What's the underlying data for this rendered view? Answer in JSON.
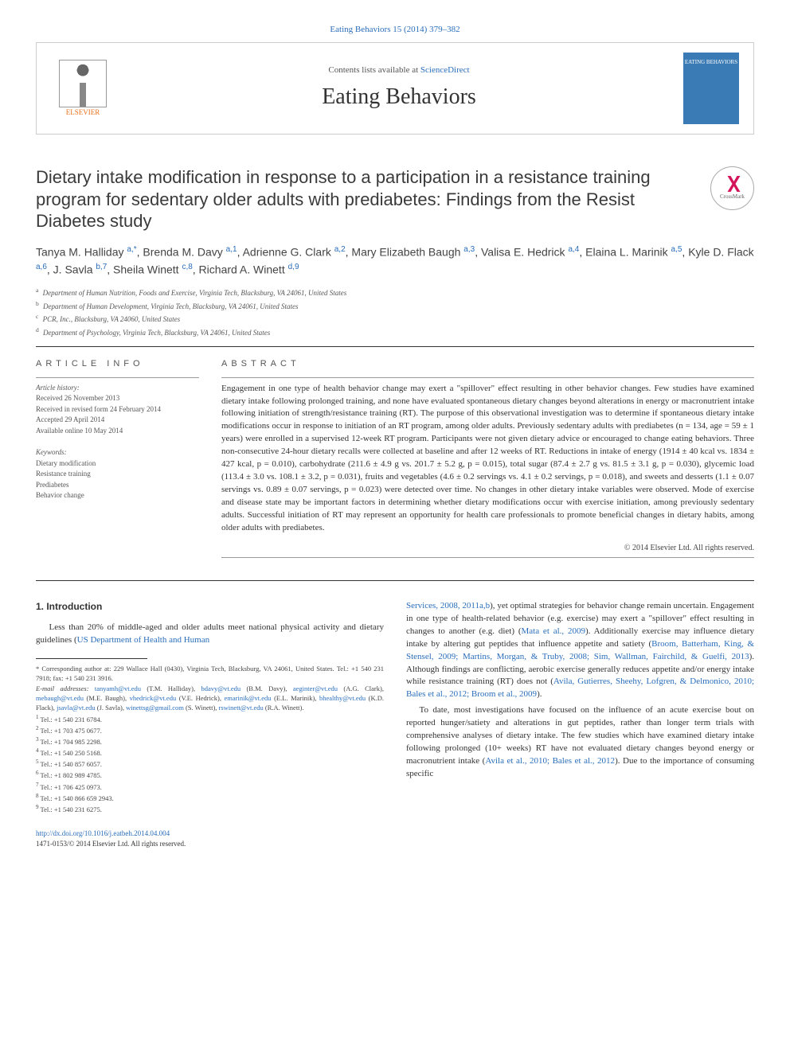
{
  "top_link": "Eating Behaviors 15 (2014) 379–382",
  "header": {
    "contents_prefix": "Contents lists available at ",
    "contents_link": "ScienceDirect",
    "journal": "Eating Behaviors",
    "elsevier": "ELSEVIER",
    "cover_text": "EATING BEHAVIORS"
  },
  "title": "Dietary intake modification in response to a participation in a resistance training program for sedentary older adults with prediabetes: Findings from the Resist Diabetes study",
  "crossmark": "CrossMark",
  "authors_html": "Tanya M. Halliday <sup>a,*</sup>, Brenda M. Davy <sup>a,1</sup>, Adrienne G. Clark <sup>a,2</sup>, Mary Elizabeth Baugh <sup>a,3</sup>, Valisa E. Hedrick <sup>a,4</sup>, Elaina L. Marinik <sup>a,5</sup>, Kyle D. Flack <sup>a,6</sup>, J. Savla <sup>b,7</sup>, Sheila Winett <sup>c,8</sup>, Richard A. Winett <sup>d,9</sup>",
  "affiliations": [
    {
      "sup": "a",
      "text": "Department of Human Nutrition, Foods and Exercise, Virginia Tech, Blacksburg, VA 24061, United States"
    },
    {
      "sup": "b",
      "text": "Department of Human Development, Virginia Tech, Blacksburg, VA 24061, United States"
    },
    {
      "sup": "c",
      "text": "PCR, Inc., Blacksburg, VA 24060, United States"
    },
    {
      "sup": "d",
      "text": "Department of Psychology, Virginia Tech, Blacksburg, VA 24061, United States"
    }
  ],
  "article_info": {
    "head": "ARTICLE INFO",
    "history_label": "Article history:",
    "history": [
      "Received 26 November 2013",
      "Received in revised form 24 February 2014",
      "Accepted 29 April 2014",
      "Available online 10 May 2014"
    ],
    "keywords_label": "Keywords:",
    "keywords": [
      "Dietary modification",
      "Resistance training",
      "Prediabetes",
      "Behavior change"
    ]
  },
  "abstract": {
    "head": "ABSTRACT",
    "text": "Engagement in one type of health behavior change may exert a \"spillover\" effect resulting in other behavior changes. Few studies have examined dietary intake following prolonged training, and none have evaluated spontaneous dietary changes beyond alterations in energy or macronutrient intake following initiation of strength/resistance training (RT). The purpose of this observational investigation was to determine if spontaneous dietary intake modifications occur in response to initiation of an RT program, among older adults. Previously sedentary adults with prediabetes (n = 134, age = 59 ± 1 years) were enrolled in a supervised 12-week RT program. Participants were not given dietary advice or encouraged to change eating behaviors. Three non-consecutive 24-hour dietary recalls were collected at baseline and after 12 weeks of RT. Reductions in intake of energy (1914 ± 40 kcal vs. 1834 ± 427 kcal, p = 0.010), carbohydrate (211.6 ± 4.9 g vs. 201.7 ± 5.2 g, p = 0.015), total sugar (87.4 ± 2.7 g vs. 81.5 ± 3.1 g, p = 0.030), glycemic load (113.4 ± 3.0 vs. 108.1 ± 3.2, p = 0.031), fruits and vegetables (4.6 ± 0.2 servings vs. 4.1 ± 0.2 servings, p = 0.018), and sweets and desserts (1.1 ± 0.07 servings vs. 0.89 ± 0.07 servings, p = 0.023) were detected over time. No changes in other dietary intake variables were observed. Mode of exercise and disease state may be important factors in determining whether dietary modifications occur with exercise initiation, among previously sedentary adults. Successful initiation of RT may represent an opportunity for health care professionals to promote beneficial changes in dietary habits, among older adults with prediabetes.",
    "copyright": "© 2014 Elsevier Ltd. All rights reserved."
  },
  "body": {
    "intro_head": "1. Introduction",
    "left_p1_a": "Less than 20% of middle-aged and older adults meet national physical activity and dietary guidelines (",
    "left_p1_link": "US Department of Health and Human",
    "right_p1_link1": "Services, 2008, 2011a,b",
    "right_p1_a": "), yet optimal strategies for behavior change remain uncertain. Engagement in one type of health-related behavior (e.g. exercise) may exert a \"spillover\" effect resulting in changes to another (e.g. diet) (",
    "right_p1_link2": "Mata et al., 2009",
    "right_p1_b": "). Additionally exercise may influence dietary intake by altering gut peptides that influence appetite and satiety (",
    "right_p1_link3": "Broom, Batterham, King, & Stensel, 2009; Martins, Morgan, & Truby, 2008; Sim, Wallman, Fairchild, & Guelfi, 2013",
    "right_p1_c": "). Although findings are conflicting, aerobic exercise generally reduces appetite and/or energy intake while resistance training (RT) does not (",
    "right_p1_link4": "Avila, Gutierres, Sheehy, Lofgren, & Delmonico, 2010; Bales et al., 2012; Broom et al., 2009",
    "right_p1_d": ").",
    "right_p2_a": "To date, most investigations have focused on the influence of an acute exercise bout on reported hunger/satiety and alterations in gut peptides, rather than longer term trials with comprehensive analyses of dietary intake. The few studies which have examined dietary intake following prolonged (10+ weeks) RT have not evaluated dietary changes beyond energy or macronutrient intake (",
    "right_p2_link1": "Avila et al., 2010; Bales et al., 2012",
    "right_p2_b": "). Due to the importance of consuming specific"
  },
  "footnotes": {
    "corr": "* Corresponding author at: 229 Wallace Hall (0430), Virginia Tech, Blacksburg, VA 24061, United States. Tel.: +1 540 231 7918; fax: +1 540 231 3916.",
    "email_label": "E-mail addresses: ",
    "emails": "tanyamh@vt.edu (T.M. Halliday), bdavy@vt.edu (B.M. Davy), aeginter@vt.edu (A.G. Clark), mebaugh@vt.edu (M.E. Baugh), vhedrick@vt.edu (V.E. Hedrick), emarinik@vt.edu (E.L. Marinik), bhealthy@vt.edu (K.D. Flack), jsavla@vt.edu (J. Savla), winettsg@gmail.com (S. Winett), rswinett@vt.edu (R.A. Winett).",
    "tels": [
      "Tel.: +1 540 231 6784.",
      "Tel.: +1 703 475 0677.",
      "Tel.: +1 704 985 2298.",
      "Tel.: +1 540 250 5168.",
      "Tel.: +1 540 857 6057.",
      "Tel.: +1 802 989 4785.",
      "Tel.: +1 706 425 0973.",
      "Tel.: +1 540 866 659 2943.",
      "Tel.: +1 540 231 6275."
    ]
  },
  "doi": {
    "url": "http://dx.doi.org/10.1016/j.eatbeh.2014.04.004",
    "issn": "1471-0153/© 2014 Elsevier Ltd. All rights reserved."
  },
  "colors": {
    "link": "#2a6ebb",
    "text": "#333333",
    "orange": "#e9711c"
  }
}
